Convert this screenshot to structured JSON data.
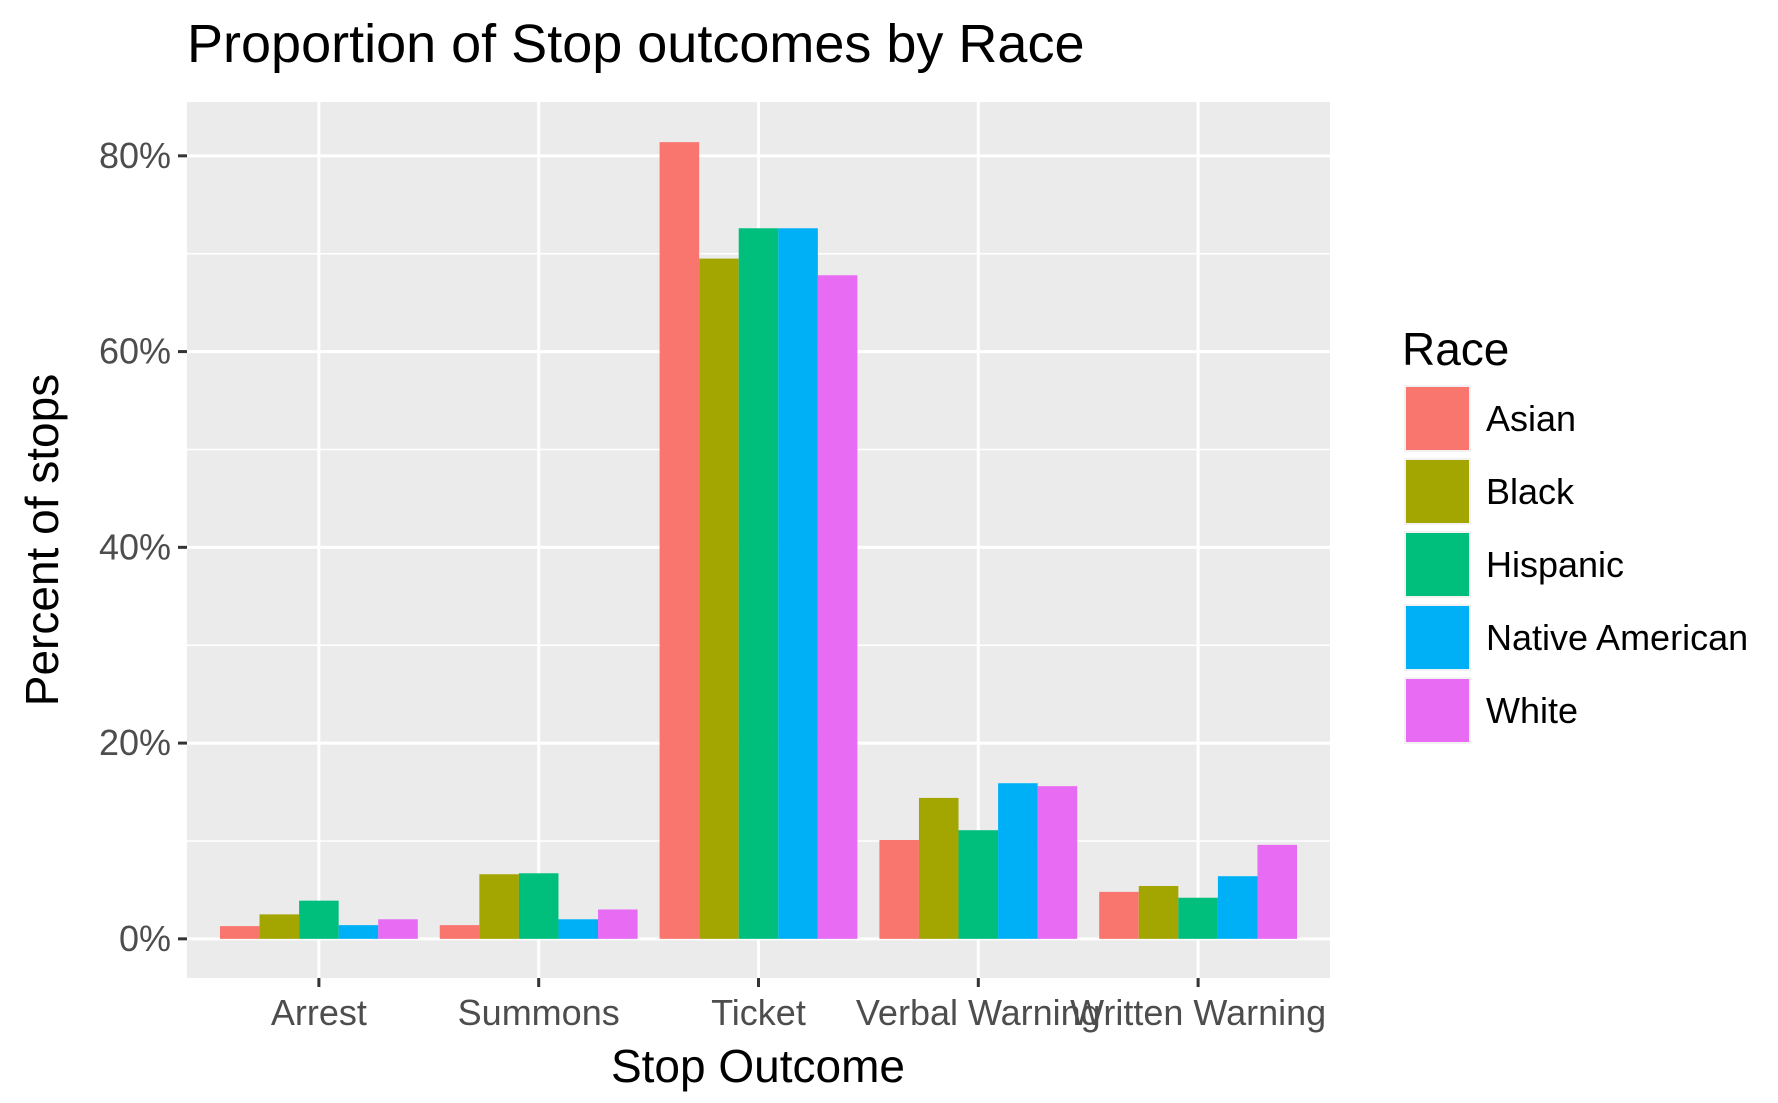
{
  "chart_data": {
    "type": "bar",
    "title": "Proportion of Stop outcomes by Race",
    "xlabel": "Stop Outcome",
    "ylabel": "Percent of stops",
    "categories": [
      "Arrest",
      "Summons",
      "Ticket",
      "Verbal Warning",
      "Written Warning"
    ],
    "y_ticks": [
      "0%",
      "20%",
      "40%",
      "60%",
      "80%"
    ],
    "y_tick_values": [
      0,
      0.2,
      0.4,
      0.6,
      0.8
    ],
    "ylim": [
      -0.04,
      0.855
    ],
    "grid": true,
    "legend": {
      "title": "Race",
      "position": "right"
    },
    "series": [
      {
        "name": "Asian",
        "color": "#F8766D",
        "values": [
          0.013,
          0.014,
          0.814,
          0.101,
          0.048
        ]
      },
      {
        "name": "Black",
        "color": "#A3A500",
        "values": [
          0.025,
          0.066,
          0.695,
          0.144,
          0.054
        ]
      },
      {
        "name": "Hispanic",
        "color": "#00BF7D",
        "values": [
          0.039,
          0.067,
          0.726,
          0.111,
          0.042
        ]
      },
      {
        "name": "Native American",
        "color": "#00B0F6",
        "values": [
          0.014,
          0.02,
          0.726,
          0.159,
          0.064
        ]
      },
      {
        "name": "White",
        "color": "#E76BF3",
        "values": [
          0.02,
          0.03,
          0.678,
          0.156,
          0.096
        ]
      }
    ]
  }
}
